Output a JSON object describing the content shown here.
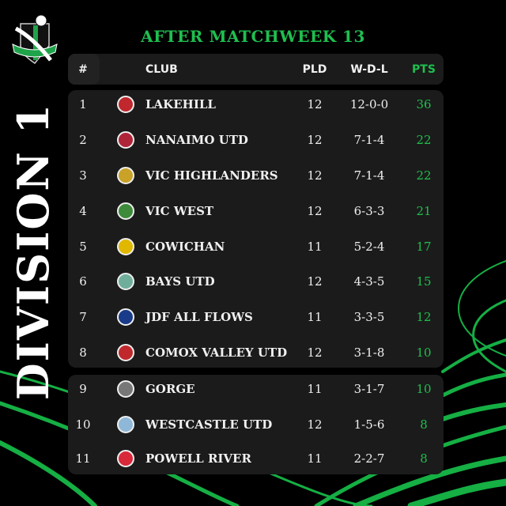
{
  "title": "AFTER MATCHWEEK 13",
  "division": "DIVISION 1",
  "logo_text": "V.I.S.L.",
  "colors": {
    "accent": "#1fbf4f",
    "panel": "#1b1b1b",
    "background": "#000000"
  },
  "header": {
    "rank": "#",
    "club": "CLUB",
    "pld": "PLD",
    "wdl": "W-D-L",
    "pts": "PTS"
  },
  "rows": [
    {
      "rank": "1",
      "club": "LAKEHILL",
      "pld": "12",
      "wdl": "12-0-0",
      "pts": "36",
      "badge": "#c0282d"
    },
    {
      "rank": "2",
      "club": "NANAIMO UTD",
      "pld": "12",
      "wdl": "7-1-4",
      "pts": "22",
      "badge": "#b0243a"
    },
    {
      "rank": "3",
      "club": "VIC HIGHLANDERS",
      "pld": "12",
      "wdl": "7-1-4",
      "pts": "22",
      "badge": "#c9a227"
    },
    {
      "rank": "4",
      "club": "VIC WEST",
      "pld": "12",
      "wdl": "6-3-3",
      "pts": "21",
      "badge": "#3d8a3a"
    },
    {
      "rank": "5",
      "club": "COWICHAN",
      "pld": "11",
      "wdl": "5-2-4",
      "pts": "17",
      "badge": "#e0b800"
    },
    {
      "rank": "6",
      "club": "BAYS UTD",
      "pld": "12",
      "wdl": "4-3-5",
      "pts": "15",
      "badge": "#6fae9a"
    },
    {
      "rank": "7",
      "club": "JDF ALL FLOWS",
      "pld": "11",
      "wdl": "3-3-5",
      "pts": "12",
      "badge": "#1a3a8a"
    },
    {
      "rank": "8",
      "club": "COMOX VALLEY UTD",
      "pld": "12",
      "wdl": "3-1-8",
      "pts": "10",
      "badge": "#c0282d"
    },
    {
      "rank": "9",
      "club": "GORGE",
      "pld": "11",
      "wdl": "3-1-7",
      "pts": "10",
      "badge": "#777777"
    },
    {
      "rank": "10",
      "club": "WESTCASTLE UTD",
      "pld": "12",
      "wdl": "1-5-6",
      "pts": "8",
      "badge": "#8fb8d8"
    },
    {
      "rank": "11",
      "club": "POWELL RIVER",
      "pld": "11",
      "wdl": "2-2-7",
      "pts": "8",
      "badge": "#d8283a"
    }
  ]
}
